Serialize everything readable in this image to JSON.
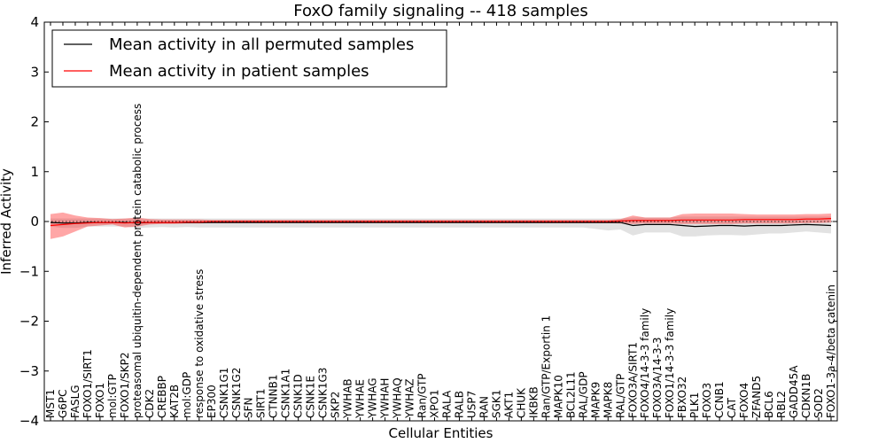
{
  "chart_data": {
    "type": "line",
    "title": "FoxO family signaling -- 418 samples",
    "xlabel": "Cellular Entities",
    "ylabel": "Inferred Activity",
    "ylim": [
      -4,
      4
    ],
    "yticks": [
      "−4",
      "−3",
      "−2",
      "−1",
      "0",
      "1",
      "2",
      "3",
      "4"
    ],
    "legend": {
      "placement": "top-left",
      "entries": [
        {
          "label": "Mean activity in all permuted samples",
          "color": "#000000"
        },
        {
          "label": "Mean activity in patient samples",
          "color": "#ff0000"
        }
      ]
    },
    "categories": [
      "MST1",
      "G6PC",
      "FASLG",
      "FOXO1/SIRT1",
      "FOXO1",
      "mol:GTP",
      "FOXO1/SKP2",
      "proteasomal ubiquitin-dependent protein catabolic process",
      "CDK2",
      "CREBBP",
      "KAT2B",
      "mol:GDP",
      "response to oxidative stress",
      "EP300",
      "CSNK1G1",
      "CSNK1G2",
      "SFN",
      "SIRT1",
      "CTNNB1",
      "CSNK1A1",
      "CSNK1D",
      "CSNK1E",
      "CSNK1G3",
      "SKP2",
      "YWHAB",
      "YWHAE",
      "YWHAG",
      "YWHAH",
      "YWHAQ",
      "YWHAZ",
      "Ran/GTP",
      "XPO1",
      "RALA",
      "RALB",
      "USP7",
      "RAN",
      "SGK1",
      "AKT1",
      "CHUK",
      "IKBKB",
      "Ran/GTP/Exportin 1",
      "MAPK10",
      "BCL2L11",
      "RAL/GDP",
      "MAPK9",
      "MAPK8",
      "RAL/GTP",
      "FOXO3A/SIRT1",
      "FOXO4/14-3-3 family",
      "FOXO3A/14-3-3",
      "FOXO1/14-3-3 family",
      "FBXO32",
      "PLK1",
      "FOXO3",
      "CCNB1",
      "CAT",
      "FOXO4",
      "ZFAND5",
      "BCL6",
      "RBL2",
      "GADD45A",
      "CDKN1B",
      "SOD2",
      "FOXO1-3a-4/beta catenin"
    ],
    "series": [
      {
        "name": "Mean activity in all permuted samples",
        "color": "#000000",
        "values": [
          -0.02,
          -0.03,
          -0.03,
          -0.02,
          -0.02,
          -0.02,
          -0.02,
          -0.03,
          -0.02,
          -0.02,
          -0.02,
          -0.02,
          -0.02,
          -0.02,
          -0.02,
          -0.02,
          -0.02,
          -0.02,
          -0.02,
          -0.02,
          -0.02,
          -0.02,
          -0.02,
          -0.02,
          -0.02,
          -0.02,
          -0.02,
          -0.02,
          -0.02,
          -0.02,
          -0.02,
          -0.02,
          -0.02,
          -0.02,
          -0.02,
          -0.02,
          -0.02,
          -0.02,
          -0.02,
          -0.02,
          -0.02,
          -0.02,
          -0.02,
          -0.02,
          -0.02,
          -0.02,
          -0.02,
          -0.08,
          -0.06,
          -0.06,
          -0.06,
          -0.08,
          -0.1,
          -0.09,
          -0.08,
          -0.08,
          -0.09,
          -0.08,
          -0.08,
          -0.08,
          -0.07,
          -0.06,
          -0.07,
          -0.08
        ],
        "lower": [
          -0.1,
          -0.13,
          -0.13,
          -0.1,
          -0.1,
          -0.1,
          -0.1,
          -0.13,
          -0.12,
          -0.11,
          -0.12,
          -0.11,
          -0.12,
          -0.12,
          -0.12,
          -0.12,
          -0.12,
          -0.12,
          -0.12,
          -0.12,
          -0.12,
          -0.12,
          -0.12,
          -0.12,
          -0.12,
          -0.12,
          -0.12,
          -0.12,
          -0.12,
          -0.12,
          -0.12,
          -0.12,
          -0.12,
          -0.12,
          -0.12,
          -0.12,
          -0.12,
          -0.12,
          -0.12,
          -0.12,
          -0.12,
          -0.12,
          -0.12,
          -0.12,
          -0.15,
          -0.18,
          -0.16,
          -0.28,
          -0.22,
          -0.22,
          -0.22,
          -0.3,
          -0.3,
          -0.28,
          -0.27,
          -0.27,
          -0.28,
          -0.26,
          -0.24,
          -0.24,
          -0.22,
          -0.2,
          -0.22,
          -0.24
        ],
        "upper": [
          0.06,
          0.06,
          0.06,
          0.06,
          0.06,
          0.06,
          0.06,
          0.06,
          0.06,
          0.06,
          0.06,
          0.06,
          0.06,
          0.06,
          0.06,
          0.06,
          0.06,
          0.06,
          0.06,
          0.06,
          0.06,
          0.06,
          0.06,
          0.06,
          0.06,
          0.06,
          0.06,
          0.06,
          0.06,
          0.06,
          0.06,
          0.06,
          0.06,
          0.06,
          0.06,
          0.06,
          0.06,
          0.06,
          0.06,
          0.06,
          0.06,
          0.06,
          0.06,
          0.06,
          0.06,
          0.06,
          0.06,
          0.08,
          0.08,
          0.08,
          0.08,
          0.1,
          0.1,
          0.1,
          0.1,
          0.1,
          0.1,
          0.1,
          0.1,
          0.1,
          0.1,
          0.1,
          0.1,
          0.1
        ]
      },
      {
        "name": "Mean activity in patient samples",
        "color": "#ff0000",
        "values": [
          -0.08,
          -0.06,
          -0.04,
          -0.03,
          -0.02,
          -0.02,
          -0.03,
          -0.02,
          -0.02,
          -0.02,
          -0.02,
          -0.01,
          -0.01,
          0.0,
          0.0,
          0.0,
          0.0,
          0.0,
          0.0,
          0.0,
          0.0,
          0.0,
          0.0,
          0.0,
          0.0,
          0.0,
          0.0,
          0.0,
          0.0,
          0.0,
          0.0,
          0.0,
          0.0,
          0.0,
          0.0,
          0.0,
          0.0,
          0.0,
          0.0,
          0.0,
          0.0,
          0.0,
          0.0,
          0.0,
          0.0,
          0.0,
          0.01,
          0.02,
          0.02,
          0.02,
          0.02,
          0.03,
          0.03,
          0.03,
          0.03,
          0.03,
          0.04,
          0.04,
          0.04,
          0.04,
          0.04,
          0.05,
          0.05,
          0.06
        ],
        "lower": [
          -0.35,
          -0.3,
          -0.2,
          -0.1,
          -0.08,
          -0.06,
          -0.12,
          -0.1,
          -0.06,
          -0.05,
          -0.05,
          -0.04,
          -0.04,
          -0.03,
          -0.03,
          -0.03,
          -0.03,
          -0.03,
          -0.03,
          -0.03,
          -0.03,
          -0.03,
          -0.03,
          -0.03,
          -0.03,
          -0.03,
          -0.03,
          -0.03,
          -0.03,
          -0.03,
          -0.03,
          -0.03,
          -0.03,
          -0.03,
          -0.03,
          -0.03,
          -0.03,
          -0.03,
          -0.03,
          -0.03,
          -0.03,
          -0.03,
          -0.03,
          -0.03,
          -0.03,
          -0.03,
          -0.04,
          -0.05,
          -0.04,
          -0.04,
          -0.04,
          -0.05,
          -0.05,
          -0.05,
          -0.05,
          -0.05,
          -0.04,
          -0.04,
          -0.04,
          -0.04,
          -0.04,
          -0.03,
          -0.03,
          -0.02
        ],
        "upper": [
          0.15,
          0.18,
          0.12,
          0.08,
          0.07,
          0.05,
          0.06,
          0.08,
          0.05,
          0.04,
          0.04,
          0.04,
          0.04,
          0.03,
          0.03,
          0.03,
          0.03,
          0.03,
          0.03,
          0.03,
          0.03,
          0.03,
          0.03,
          0.03,
          0.03,
          0.03,
          0.03,
          0.03,
          0.03,
          0.03,
          0.03,
          0.03,
          0.03,
          0.03,
          0.03,
          0.03,
          0.03,
          0.03,
          0.03,
          0.03,
          0.03,
          0.03,
          0.03,
          0.03,
          0.03,
          0.03,
          0.05,
          0.12,
          0.08,
          0.08,
          0.08,
          0.15,
          0.16,
          0.16,
          0.16,
          0.16,
          0.15,
          0.14,
          0.14,
          0.14,
          0.14,
          0.15,
          0.15,
          0.16
        ]
      }
    ]
  }
}
